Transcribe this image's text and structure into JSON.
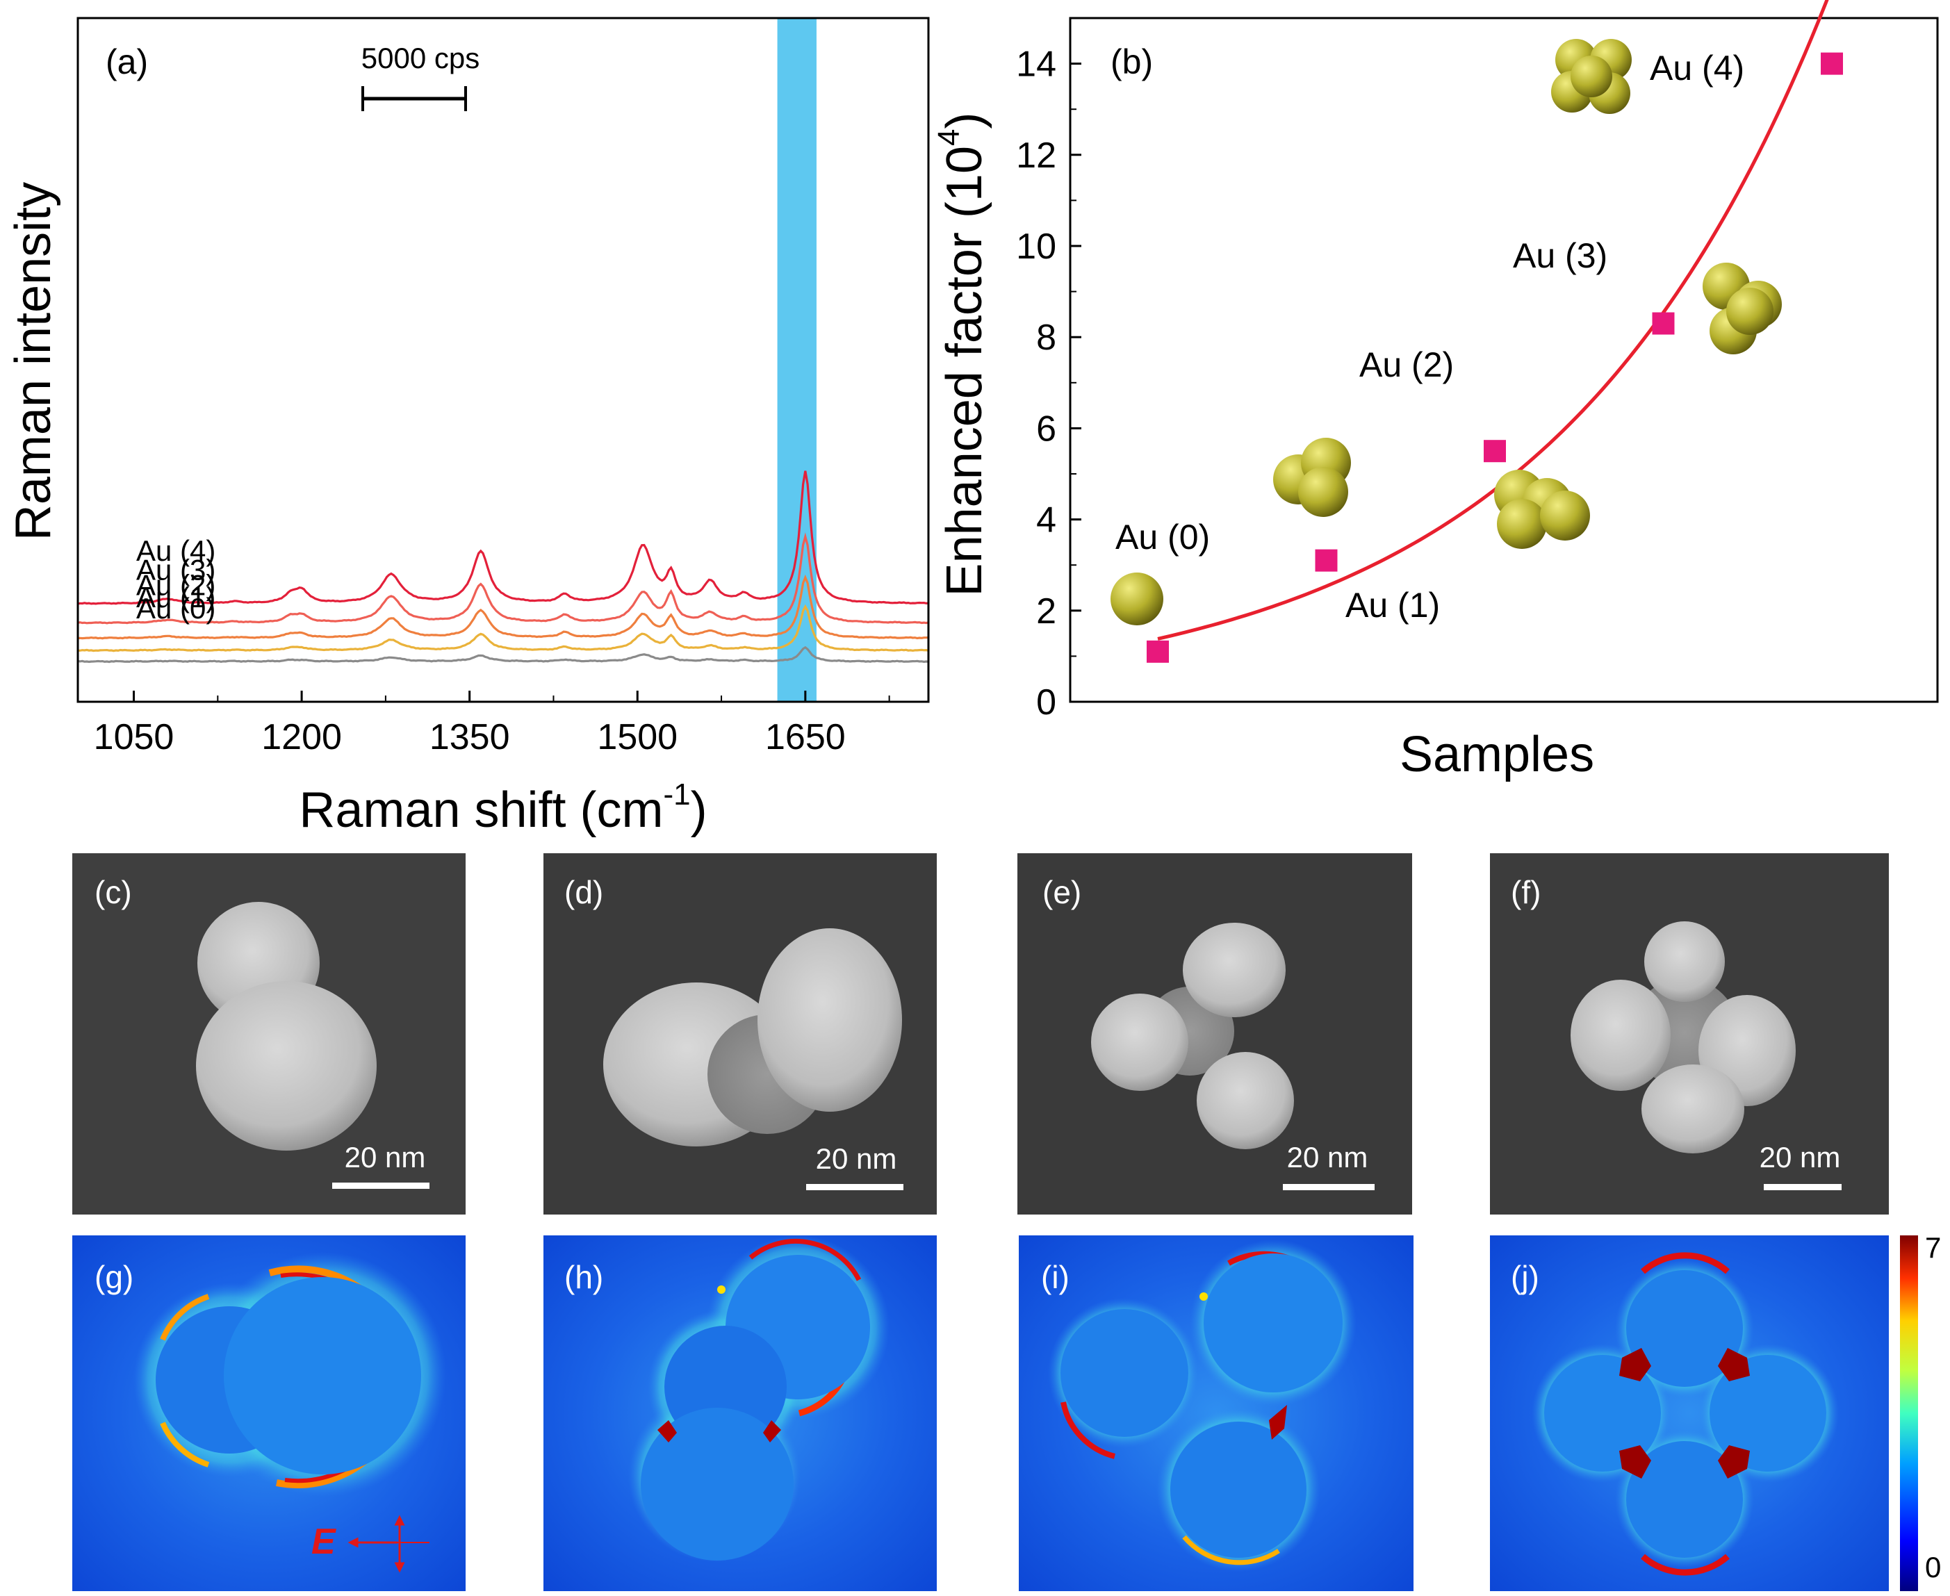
{
  "colors": {
    "au4": "#e3203a",
    "au3": "#ef5f55",
    "au2": "#ef7f3e",
    "au1": "#eab23a",
    "au0": "#8a8a8a",
    "highlight": "#5ec8f0",
    "fit": "#e8202e",
    "marker": "#e8187c",
    "particle": "#b5b02c",
    "sem_bg": "#3d3d3d",
    "field_bg": "#0d47d6",
    "hot": "#c00000"
  },
  "chart_data": [
    {
      "panel": "(a)",
      "type": "line",
      "xlabel": "Raman shift (cm",
      "xlabel_sup": "-1",
      "xlabel_end": ")",
      "ylabel": "Raman intensity",
      "xlim": [
        1000,
        1760
      ],
      "xticks": [
        "1050",
        "1200",
        "1350",
        "1500",
        "1650"
      ],
      "xtick_values": [
        1050,
        1200,
        1350,
        1500,
        1650
      ],
      "scale_bar_label": "5000 cps",
      "scale_bar_value": 5000,
      "highlight_band": [
        1625,
        1660
      ],
      "peaks_cm": [
        1080,
        1140,
        1190,
        1200,
        1280,
        1360,
        1435,
        1505,
        1530,
        1565,
        1595,
        1650
      ],
      "series": [
        {
          "name": "Au (4)",
          "baseline": 4200,
          "amplitudes": [
            400,
            150,
            700,
            1100,
            2500,
            4500,
            700,
            5000,
            2300,
            1800,
            700,
            11500
          ]
        },
        {
          "name": "Au (3)",
          "baseline": 2800,
          "amplitudes": [
            250,
            100,
            500,
            600,
            2300,
            3300,
            650,
            2600,
            2300,
            800,
            400,
            7500
          ]
        },
        {
          "name": "Au (2)",
          "baseline": 1700,
          "amplitudes": [
            150,
            60,
            320,
            300,
            1700,
            2400,
            450,
            2000,
            1700,
            550,
            300,
            5300
          ]
        },
        {
          "name": "Au (1)",
          "baseline": 800,
          "amplitudes": [
            80,
            40,
            200,
            200,
            900,
            1400,
            280,
            1400,
            1100,
            350,
            200,
            3800
          ]
        },
        {
          "name": "Au (0)",
          "baseline": 0,
          "amplitudes": [
            40,
            30,
            100,
            100,
            350,
            500,
            150,
            600,
            300,
            150,
            100,
            1200
          ]
        }
      ]
    },
    {
      "panel": "(b)",
      "type": "scatter",
      "xlabel": "Samples",
      "ylabel": "Enhanced factor (10",
      "ylabel_sup": "4",
      "ylabel_end": ")",
      "ylim": [
        0,
        15
      ],
      "yticks": [
        "0",
        "2",
        "4",
        "6",
        "8",
        "10",
        "12",
        "14"
      ],
      "ytick_values": [
        0,
        2,
        4,
        6,
        8,
        10,
        12,
        14
      ],
      "points": [
        {
          "label": "Au (0)",
          "x": 0,
          "y": 1.1
        },
        {
          "label": "Au (1)",
          "x": 1,
          "y": 3.1
        },
        {
          "label": "Au (2)",
          "x": 2,
          "y": 5.5
        },
        {
          "label": "Au (3)",
          "x": 3,
          "y": 8.3
        },
        {
          "label": "Au (4)",
          "x": 4,
          "y": 14.0
        }
      ],
      "fit": "exponential"
    }
  ],
  "sem_panels": [
    {
      "label": "(c)",
      "scale": "20 nm"
    },
    {
      "label": "(d)",
      "scale": "20 nm"
    },
    {
      "label": "(e)",
      "scale": "20 nm"
    },
    {
      "label": "(f)",
      "scale": "20 nm"
    }
  ],
  "field_panels": [
    {
      "label": "(g)"
    },
    {
      "label": "(h)"
    },
    {
      "label": "(i)"
    },
    {
      "label": "(j)"
    }
  ],
  "field_polarization_label": "E",
  "colorbar": {
    "max_label": "7",
    "min_label": "0",
    "max": 7,
    "min": 0
  }
}
